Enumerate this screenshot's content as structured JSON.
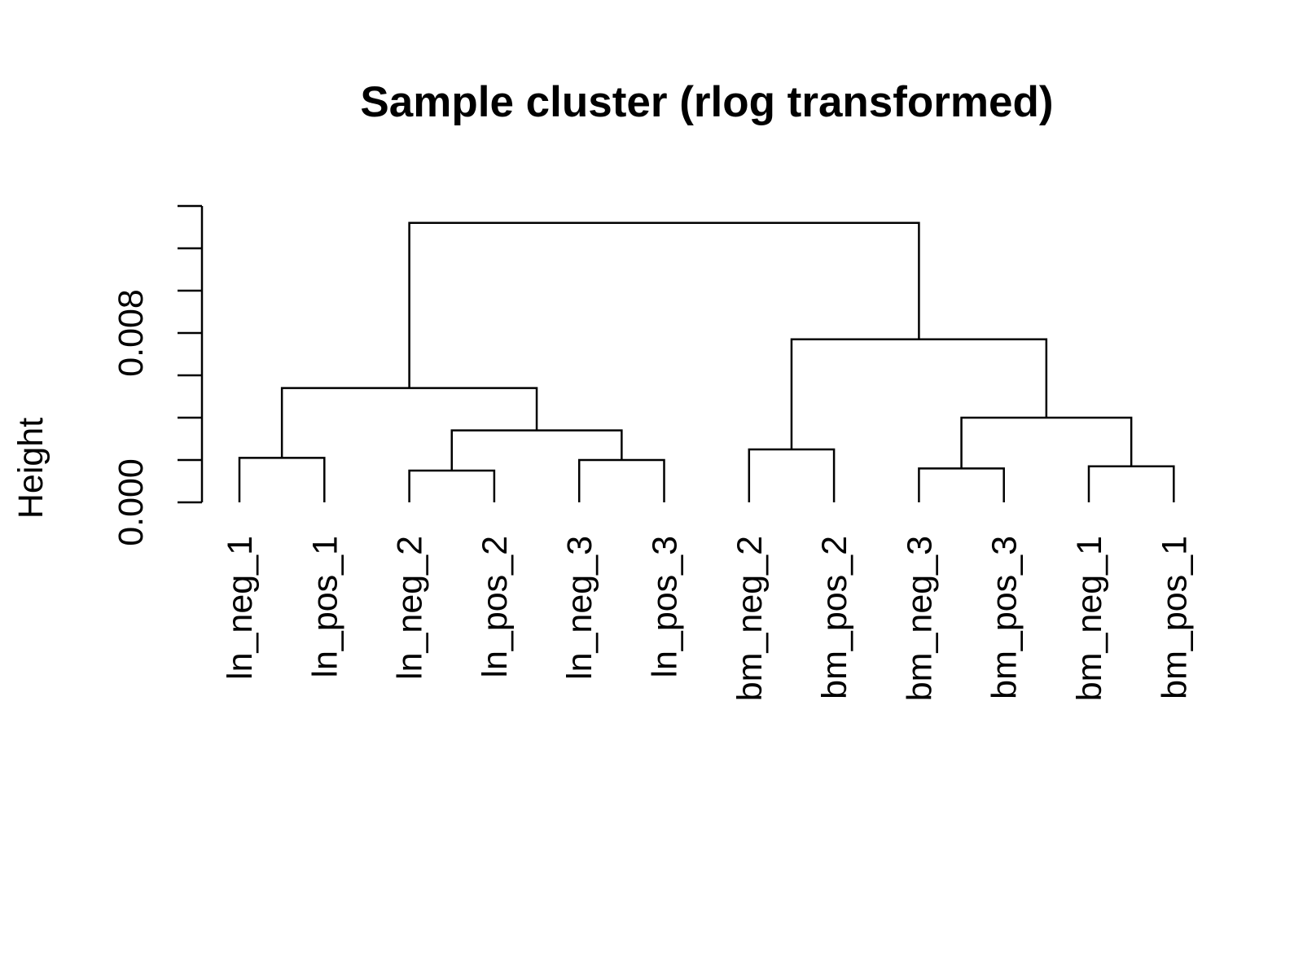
{
  "chart_data": {
    "type": "dendrogram",
    "title": "Sample cluster (rlog transformed)",
    "xlabel": "",
    "ylabel": "Height",
    "ylim": [
      0,
      0.014
    ],
    "y_ticks": [
      0,
      0.002,
      0.004,
      0.006,
      0.008,
      0.01,
      0.012,
      0.014
    ],
    "y_tick_labels": [
      {
        "value": 0.0,
        "label": "0.000"
      },
      {
        "value": 0.008,
        "label": "0.008"
      }
    ],
    "leaves": [
      "ln_neg_1",
      "ln_pos_1",
      "ln_neg_2",
      "ln_pos_2",
      "ln_neg_3",
      "ln_pos_3",
      "bm_neg_2",
      "bm_pos_2",
      "bm_neg_3",
      "bm_pos_3",
      "bm_neg_1",
      "bm_pos_1"
    ],
    "merges": [
      {
        "id": "m1",
        "left": "ln_neg_1",
        "right": "ln_pos_1",
        "height": 0.0021
      },
      {
        "id": "m2",
        "left": "ln_neg_2",
        "right": "ln_pos_2",
        "height": 0.0015
      },
      {
        "id": "m3",
        "left": "ln_neg_3",
        "right": "ln_pos_3",
        "height": 0.002
      },
      {
        "id": "m4",
        "left": "m2",
        "right": "m3",
        "height": 0.0034
      },
      {
        "id": "m5",
        "left": "m1",
        "right": "m4",
        "height": 0.0054
      },
      {
        "id": "m6",
        "left": "bm_neg_2",
        "right": "bm_pos_2",
        "height": 0.0025
      },
      {
        "id": "m7",
        "left": "bm_neg_3",
        "right": "bm_pos_3",
        "height": 0.0016
      },
      {
        "id": "m8",
        "left": "bm_neg_1",
        "right": "bm_pos_1",
        "height": 0.0017
      },
      {
        "id": "m9",
        "left": "m7",
        "right": "m8",
        "height": 0.004
      },
      {
        "id": "m10",
        "left": "m6",
        "right": "m9",
        "height": 0.0077
      },
      {
        "id": "m11",
        "left": "m5",
        "right": "m10",
        "height": 0.0132
      }
    ]
  }
}
